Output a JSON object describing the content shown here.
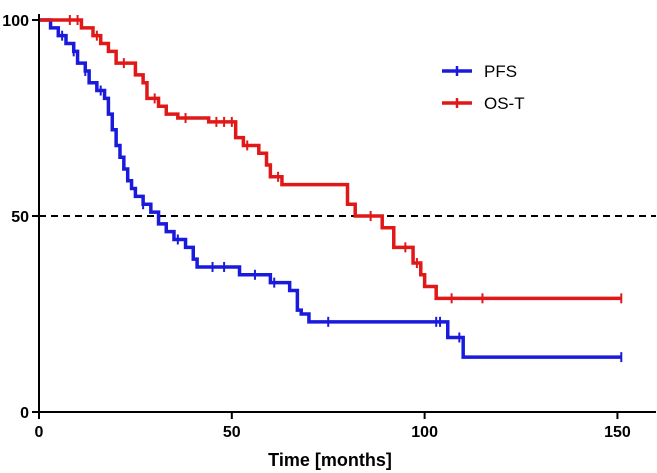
{
  "chart_data": {
    "type": "line",
    "subtype": "kaplan-meier step curves",
    "title": "",
    "xlabel": "Time [months]",
    "ylabel": "",
    "xlim": [
      0,
      160
    ],
    "ylim": [
      0,
      100
    ],
    "xticks": [
      0,
      50,
      100,
      150
    ],
    "yticks": [
      0,
      50,
      100
    ],
    "reference_line": {
      "y": 50,
      "style": "dashed"
    },
    "legend_position": "top-right",
    "series": [
      {
        "name": "PFS",
        "color": "#1a1adc",
        "steps": [
          [
            0,
            100
          ],
          [
            3,
            98
          ],
          [
            5,
            96
          ],
          [
            7,
            94
          ],
          [
            9,
            92
          ],
          [
            10,
            89
          ],
          [
            12,
            87
          ],
          [
            13,
            84
          ],
          [
            15,
            82
          ],
          [
            17,
            80
          ],
          [
            18,
            76
          ],
          [
            19,
            72
          ],
          [
            20,
            68
          ],
          [
            21,
            65
          ],
          [
            22,
            62
          ],
          [
            23,
            59
          ],
          [
            24,
            57
          ],
          [
            25,
            55
          ],
          [
            27,
            53
          ],
          [
            29,
            51
          ],
          [
            31,
            48
          ],
          [
            33,
            46
          ],
          [
            35,
            44
          ],
          [
            38,
            42
          ],
          [
            40,
            39
          ],
          [
            41,
            37
          ],
          [
            50,
            37
          ],
          [
            52,
            35
          ],
          [
            60,
            33
          ],
          [
            65,
            31
          ],
          [
            67,
            26
          ],
          [
            68,
            25
          ],
          [
            70,
            23
          ],
          [
            105,
            23
          ],
          [
            106,
            19
          ],
          [
            110,
            14
          ],
          [
            151,
            14
          ]
        ],
        "censor_x": [
          6,
          9,
          12,
          16,
          27,
          36,
          45,
          48,
          56,
          61,
          75,
          103,
          104,
          109,
          151
        ]
      },
      {
        "name": "OS-T",
        "color": "#e01818",
        "steps": [
          [
            0,
            100
          ],
          [
            11,
            98
          ],
          [
            14,
            96
          ],
          [
            16,
            94
          ],
          [
            18,
            92
          ],
          [
            20,
            89
          ],
          [
            25,
            86
          ],
          [
            27,
            84
          ],
          [
            28,
            80
          ],
          [
            31,
            78
          ],
          [
            33,
            76
          ],
          [
            36,
            75
          ],
          [
            44,
            74
          ],
          [
            51,
            70
          ],
          [
            53,
            68
          ],
          [
            57,
            66
          ],
          [
            59,
            63
          ],
          [
            60,
            60
          ],
          [
            63,
            58
          ],
          [
            80,
            53
          ],
          [
            82,
            50
          ],
          [
            89,
            47
          ],
          [
            92,
            42
          ],
          [
            97,
            38
          ],
          [
            99,
            35
          ],
          [
            100,
            32
          ],
          [
            103,
            29
          ],
          [
            151,
            29
          ]
        ],
        "censor_x": [
          8,
          10,
          15,
          22,
          30,
          38,
          46,
          48,
          50,
          54,
          62,
          86,
          95,
          98,
          107,
          115,
          151
        ]
      }
    ]
  }
}
